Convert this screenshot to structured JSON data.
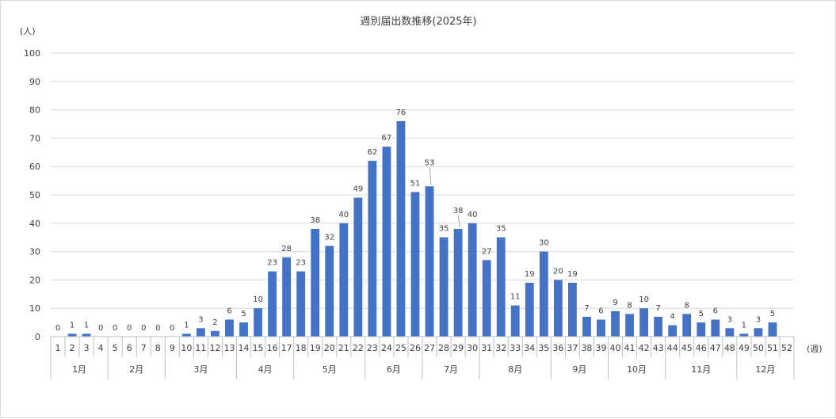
{
  "chart_data": {
    "type": "bar",
    "title": "週別届出数推移(2025年)",
    "ylabel": "(人)",
    "xlabel": "(週)",
    "ylim": [
      0,
      100
    ],
    "yticks": [
      0,
      10,
      20,
      30,
      40,
      50,
      60,
      70,
      80,
      90,
      100
    ],
    "grid": true,
    "legend": "none",
    "bar_color": "#4472c4",
    "categories": [
      "1",
      "2",
      "3",
      "4",
      "5",
      "6",
      "7",
      "8",
      "9",
      "10",
      "11",
      "12",
      "13",
      "14",
      "15",
      "16",
      "17",
      "18",
      "19",
      "20",
      "21",
      "22",
      "23",
      "24",
      "25",
      "26",
      "27",
      "28",
      "29",
      "30",
      "31",
      "32",
      "33",
      "34",
      "35",
      "36",
      "37",
      "38",
      "39",
      "40",
      "41",
      "42",
      "43",
      "44",
      "45",
      "46",
      "47",
      "48",
      "49",
      "50",
      "51",
      "52"
    ],
    "values": [
      0,
      1,
      1,
      0,
      0,
      0,
      0,
      0,
      0,
      1,
      3,
      2,
      6,
      5,
      10,
      23,
      28,
      23,
      38,
      32,
      40,
      49,
      62,
      67,
      76,
      51,
      53,
      35,
      38,
      40,
      27,
      35,
      11,
      19,
      30,
      20,
      19,
      7,
      6,
      9,
      8,
      10,
      7,
      4,
      8,
      5,
      6,
      3,
      1,
      3,
      5,
      null
    ],
    "data_labels": [
      "0",
      "1",
      "1",
      "0",
      "0",
      "0",
      "0",
      "0",
      "0",
      "1",
      "3",
      "2",
      "6",
      "5",
      "10",
      "23",
      "28",
      "23",
      "38",
      "32",
      "40",
      "49",
      "62",
      "67",
      "76",
      "51",
      "53",
      "35",
      "38",
      "40",
      "27",
      "35",
      "11",
      "19",
      "30",
      "20",
      "19",
      "7",
      "6",
      "9",
      "8",
      "10",
      "7",
      "4",
      "8",
      "5",
      "6",
      "3",
      "1",
      "3",
      "5",
      ""
    ],
    "month_groups": [
      {
        "label": "1月",
        "start": 1,
        "end": 4
      },
      {
        "label": "2月",
        "start": 5,
        "end": 8
      },
      {
        "label": "3月",
        "start": 9,
        "end": 13
      },
      {
        "label": "4月",
        "start": 14,
        "end": 17
      },
      {
        "label": "5月",
        "start": 18,
        "end": 22
      },
      {
        "label": "6月",
        "start": 23,
        "end": 26
      },
      {
        "label": "7月",
        "start": 27,
        "end": 30
      },
      {
        "label": "8月",
        "start": 31,
        "end": 35
      },
      {
        "label": "9月",
        "start": 36,
        "end": 39
      },
      {
        "label": "10月",
        "start": 40,
        "end": 43
      },
      {
        "label": "11月",
        "start": 44,
        "end": 48
      },
      {
        "label": "12月",
        "start": 49,
        "end": 52
      }
    ]
  }
}
